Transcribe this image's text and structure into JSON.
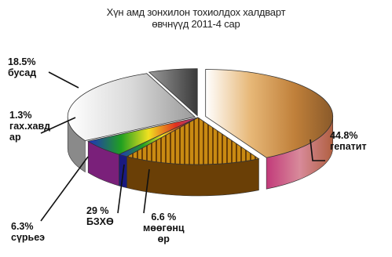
{
  "chart_data": {
    "type": "pie",
    "title": "Хүн амд зонхилон тохиолдох халдварт өвчнүүд 2011-4 сар",
    "title_lines": [
      "Хүн амд зонхилон тохиолдох халдварт",
      "өвчнүүд 2011-4 сар"
    ],
    "style": "3d-exploded",
    "slices": [
      {
        "name": "гепатит",
        "value": 44.8,
        "pct_text": "44.8%",
        "label_lines": [
          "44.8%",
          "гепатит"
        ],
        "color": "#c98a4a"
      },
      {
        "name": "бусад",
        "value": 18.5,
        "pct_text": "18.5%",
        "label_lines": [
          "18.5%",
          "бусад"
        ],
        "color": "#c98a12"
      },
      {
        "name": "гах.хавдар",
        "value": 1.3,
        "pct_text": "1.3%",
        "label_lines": [
          "1.3%",
          "гах.хавд",
          "ар"
        ],
        "color": "#2a2ab8"
      },
      {
        "name": "сүрьеэ",
        "value": 6.3,
        "pct_text": "6.3%",
        "label_lines": [
          "6.3%",
          "сүрьеэ"
        ],
        "color": "#9b3a9b"
      },
      {
        "name": "БЗХӨ",
        "value": 29,
        "pct_text": "29 %",
        "label_lines": [
          "29 %",
          "БЗХӨ"
        ],
        "color": "#d9d9d9"
      },
      {
        "name": "мөөгөнцөр",
        "value": 6.6,
        "pct_text": "6.6 %",
        "label_lines": [
          "6.6 %",
          "мөөгөнц",
          "өр"
        ],
        "color": "#6a6a6a"
      }
    ]
  }
}
